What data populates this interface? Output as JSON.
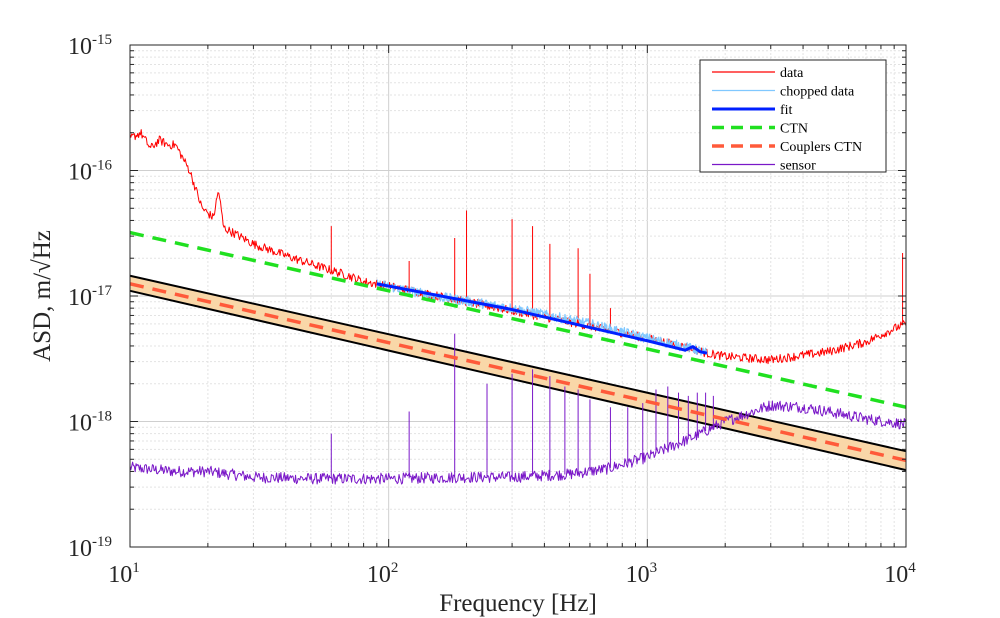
{
  "chart_data": {
    "type": "line",
    "x_scale": "log",
    "y_scale": "log",
    "xlabel": "Frequency [Hz]",
    "ylabel": "ASD, m/√Hz",
    "xlim": [
      10,
      10000
    ],
    "ylim": [
      1e-19,
      1e-15
    ],
    "x_ticks": [
      {
        "base": "10",
        "exp": "1",
        "value": 10
      },
      {
        "base": "10",
        "exp": "2",
        "value": 100
      },
      {
        "base": "10",
        "exp": "3",
        "value": 1000
      },
      {
        "base": "10",
        "exp": "4",
        "value": 10000
      }
    ],
    "y_ticks": [
      {
        "base": "10",
        "exp": "-19",
        "value": 1e-19
      },
      {
        "base": "10",
        "exp": "-18",
        "value": 1e-18
      },
      {
        "base": "10",
        "exp": "-17",
        "value": 1e-17
      },
      {
        "base": "10",
        "exp": "-16",
        "value": 1e-16
      },
      {
        "base": "10",
        "exp": "-15",
        "value": 1e-15
      }
    ],
    "grid": true,
    "legend_position": "top-right",
    "series": [
      {
        "name": "data",
        "color": "#ff0000",
        "style": "solid",
        "x": [
          10,
          11,
          12,
          13,
          14,
          15,
          17,
          19,
          21,
          22,
          23,
          25,
          30,
          40,
          50,
          60,
          70,
          80,
          90,
          100,
          200,
          400,
          700,
          1000,
          1500,
          1700,
          2000,
          3000,
          5000,
          7000,
          9000,
          10000
        ],
        "y": [
          1.8e-16,
          2e-16,
          1.5e-16,
          1.75e-16,
          1.6e-16,
          1.6e-16,
          1e-16,
          5e-17,
          4.2e-17,
          7e-17,
          3.5e-17,
          3.2e-17,
          2.6e-17,
          2.1e-17,
          1.8e-17,
          1.6e-17,
          1.45e-17,
          1.3e-17,
          1.25e-17,
          1.2e-17,
          9e-18,
          6.8e-18,
          5.4e-18,
          4.6e-18,
          3.8e-18,
          3.5e-18,
          3.3e-18,
          3.1e-18,
          3.6e-18,
          4.3e-18,
          5.5e-18,
          6e-18
        ]
      },
      {
        "name": "chopped data",
        "color": "#80c8ff",
        "style": "solid",
        "x": [
          90,
          150,
          300,
          600,
          1000,
          1500,
          1700
        ],
        "y": [
          1.25e-17,
          1e-17,
          8e-18,
          6e-18,
          4.6e-18,
          3.8e-18,
          3.5e-18
        ]
      },
      {
        "name": "fit",
        "color": "#0020ff",
        "style": "solid",
        "x": [
          90,
          300,
          1000,
          1400,
          1500,
          1600,
          1700
        ],
        "y": [
          1.25e-17,
          7.8e-18,
          4.4e-18,
          3.7e-18,
          3.95e-18,
          3.6e-18,
          3.5e-18
        ]
      },
      {
        "name": "CTN",
        "color": "#20e020",
        "style": "dashed",
        "x": [
          10,
          10000
        ],
        "y": [
          3.2e-17,
          1.3e-18
        ]
      },
      {
        "name": "Couplers CTN",
        "color": "#ff5a3a",
        "style": "dashed",
        "x": [
          10,
          10000
        ],
        "y": [
          1.25e-17,
          4.9e-19
        ]
      },
      {
        "name": "sensor",
        "color": "#7a18c8",
        "style": "solid",
        "x": [
          10,
          15,
          20,
          30,
          50,
          100,
          200,
          300,
          500,
          700,
          1000,
          1500,
          2000,
          3000,
          4000,
          5000,
          7000,
          10000
        ],
        "y": [
          4.3e-19,
          4e-19,
          4e-19,
          3.6e-19,
          3.5e-19,
          3.5e-19,
          3.6e-19,
          3.6e-19,
          3.8e-19,
          4.2e-19,
          5.2e-19,
          7.5e-19,
          1e-18,
          1.35e-18,
          1.3e-18,
          1.2e-18,
          1.05e-18,
          9.5e-19
        ]
      }
    ],
    "bands": [
      {
        "x": [
          10,
          10000
        ],
        "y_upper": [
          1.45e-17,
          5.8e-19
        ],
        "y_lower": [
          1.1e-17,
          4.1e-19
        ],
        "color": "#f9d7a8",
        "edge_color": "#000000"
      }
    ],
    "peaks": {
      "data": [
        [
          60,
          3.6e-17
        ],
        [
          120,
          1.9e-17
        ],
        [
          180,
          2.9e-17
        ],
        [
          200,
          4.8e-17
        ],
        [
          300,
          4.1e-17
        ],
        [
          360,
          3.6e-17
        ],
        [
          420,
          2.6e-17
        ],
        [
          540,
          2.4e-17
        ],
        [
          600,
          1.5e-17
        ],
        [
          720,
          8e-18
        ],
        [
          9700,
          2.2e-17
        ]
      ],
      "sensor": [
        [
          60,
          8e-19
        ],
        [
          120,
          1.2e-18
        ],
        [
          180,
          5e-18
        ],
        [
          240,
          2e-18
        ],
        [
          300,
          2.4e-18
        ],
        [
          360,
          2.6e-18
        ],
        [
          420,
          2.3e-18
        ],
        [
          480,
          1.9e-18
        ],
        [
          540,
          1.8e-18
        ],
        [
          600,
          1.5e-18
        ],
        [
          720,
          1.3e-18
        ],
        [
          840,
          1.3e-18
        ],
        [
          960,
          1.4e-18
        ],
        [
          1080,
          1.8e-18
        ],
        [
          1200,
          1.9e-18
        ],
        [
          1320,
          1.7e-18
        ],
        [
          1440,
          1.6e-18
        ],
        [
          1560,
          1.7e-18
        ],
        [
          1680,
          1.7e-18
        ],
        [
          1800,
          1.6e-18
        ]
      ]
    }
  }
}
